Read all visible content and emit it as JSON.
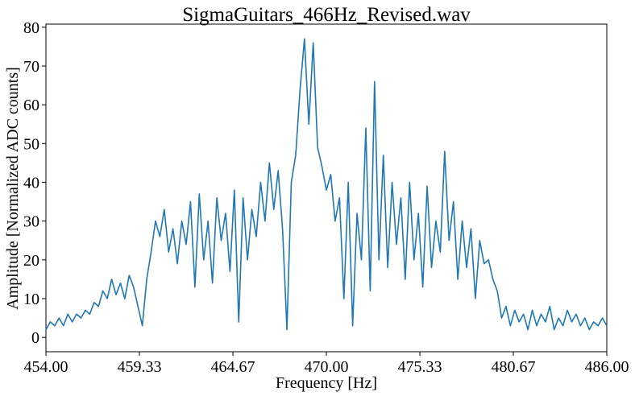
{
  "chart_data": {
    "type": "line",
    "title": "SigmaGuitars_466Hz_Revised.wav",
    "x_label": "Frequency [Hz]",
    "y_label": "Amplitude [Normalized ADC counts]",
    "x": [
      454,
      454.25,
      454.5,
      454.75,
      455,
      455.25,
      455.5,
      455.75,
      456,
      456.25,
      456.5,
      456.75,
      457,
      457.25,
      457.5,
      457.75,
      458,
      458.25,
      458.5,
      458.75,
      459,
      459.25,
      459.5,
      459.75,
      460,
      460.25,
      460.5,
      460.75,
      461,
      461.25,
      461.5,
      461.75,
      462,
      462.25,
      462.5,
      462.75,
      463,
      463.25,
      463.5,
      463.75,
      464,
      464.25,
      464.5,
      464.75,
      465,
      465.25,
      465.5,
      465.75,
      466,
      466.25,
      466.5,
      466.75,
      467,
      467.25,
      467.5,
      467.75,
      468,
      468.25,
      468.5,
      468.75,
      469,
      469.25,
      469.5,
      469.75,
      470,
      470.25,
      470.5,
      470.75,
      471,
      471.25,
      471.5,
      471.75,
      472,
      472.25,
      472.5,
      472.75,
      473,
      473.25,
      473.5,
      473.75,
      474,
      474.25,
      474.5,
      474.75,
      475,
      475.25,
      475.5,
      475.75,
      476,
      476.25,
      476.5,
      476.75,
      477,
      477.25,
      477.5,
      477.75,
      478,
      478.25,
      478.5,
      478.75,
      479,
      479.25,
      479.5,
      479.75,
      480,
      480.25,
      480.5,
      480.75,
      481,
      481.25,
      481.5,
      481.75,
      482,
      482.25,
      482.5,
      482.75,
      483,
      483.25,
      483.5,
      483.75,
      484,
      484.25,
      484.5,
      484.75,
      485,
      485.25,
      485.5,
      485.75,
      486
    ],
    "series": [
      {
        "color": "#1f77b4",
        "values": [
          2,
          4,
          3,
          5,
          3,
          6,
          4,
          6,
          5,
          7,
          6,
          9,
          8,
          12,
          10,
          15,
          11,
          14,
          10,
          16,
          13,
          8,
          3,
          15,
          22,
          30,
          26,
          33,
          22,
          28,
          19,
          30,
          24,
          35,
          13,
          37,
          20,
          30,
          14,
          36,
          25,
          32,
          17,
          38,
          4,
          36,
          20,
          33,
          26,
          40,
          30,
          45,
          33,
          43,
          28,
          2,
          40,
          47,
          64,
          77,
          55,
          76,
          49,
          44,
          38,
          42,
          30,
          36,
          10,
          40,
          3,
          32,
          20,
          54,
          12,
          66,
          20,
          47,
          18,
          40,
          24,
          36,
          15,
          40,
          20,
          32,
          13,
          39,
          18,
          30,
          22,
          48,
          25,
          35,
          15,
          30,
          18,
          28,
          10,
          25,
          19,
          20,
          15,
          12,
          5,
          8,
          3,
          7,
          4,
          6,
          2,
          7,
          3,
          6,
          4,
          8,
          2,
          5,
          3,
          7,
          4,
          6,
          3,
          5,
          2,
          4,
          3,
          5,
          3
        ]
      }
    ],
    "xlim": [
      454,
      486
    ],
    "ylim": [
      -3.7,
      80.8
    ],
    "xticks": [
      {
        "value": 454,
        "label": "454.00"
      },
      {
        "value": 459.3333,
        "label": "459.33"
      },
      {
        "value": 464.6667,
        "label": "464.67"
      },
      {
        "value": 470,
        "label": "470.00"
      },
      {
        "value": 475.3333,
        "label": "475.33"
      },
      {
        "value": 480.6667,
        "label": "480.67"
      },
      {
        "value": 486,
        "label": "486.00"
      }
    ],
    "yticks": [
      0,
      10,
      20,
      30,
      40,
      50,
      60,
      70,
      80
    ],
    "grid": false
  }
}
